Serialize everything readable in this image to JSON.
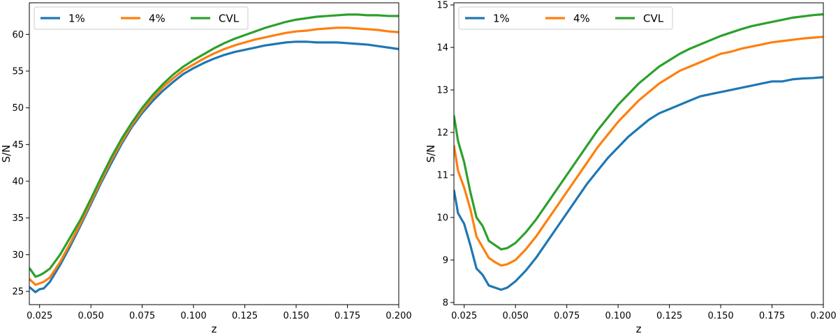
{
  "chart_data": [
    {
      "type": "line",
      "xlabel": "z",
      "ylabel": "S/N",
      "xlim": [
        0.02,
        0.2
      ],
      "ylim": [
        23.2,
        64.3
      ],
      "xticks": [
        "0.025",
        "0.050",
        "0.075",
        "0.100",
        "0.125",
        "0.150",
        "0.175",
        "0.200"
      ],
      "xtick_values": [
        0.025,
        0.05,
        0.075,
        0.1,
        0.125,
        0.15,
        0.175,
        0.2
      ],
      "yticks": [
        "25",
        "30",
        "35",
        "40",
        "45",
        "50",
        "55",
        "60"
      ],
      "ytick_values": [
        25,
        30,
        35,
        40,
        45,
        50,
        55,
        60
      ],
      "legend_position": "top-left",
      "series": [
        {
          "name": "1%",
          "color": "#1f77b4",
          "x": [
            0.02,
            0.023,
            0.025,
            0.027,
            0.03,
            0.035,
            0.04,
            0.045,
            0.05,
            0.055,
            0.06,
            0.065,
            0.07,
            0.075,
            0.08,
            0.085,
            0.09,
            0.095,
            0.1,
            0.105,
            0.11,
            0.115,
            0.12,
            0.125,
            0.13,
            0.135,
            0.14,
            0.145,
            0.15,
            0.155,
            0.16,
            0.165,
            0.17,
            0.175,
            0.18,
            0.185,
            0.19,
            0.195,
            0.2
          ],
          "y": [
            25.6,
            24.9,
            25.3,
            25.4,
            26.3,
            28.6,
            31.2,
            34.0,
            36.9,
            39.8,
            42.5,
            45.1,
            47.4,
            49.3,
            50.9,
            52.3,
            53.5,
            54.6,
            55.4,
            56.1,
            56.7,
            57.2,
            57.6,
            57.9,
            58.2,
            58.5,
            58.7,
            58.9,
            59.0,
            59.0,
            58.9,
            58.9,
            58.9,
            58.8,
            58.7,
            58.6,
            58.4,
            58.2,
            58.0
          ]
        },
        {
          "name": "4%",
          "color": "#ff7f0e",
          "x": [
            0.02,
            0.023,
            0.025,
            0.027,
            0.03,
            0.035,
            0.04,
            0.045,
            0.05,
            0.055,
            0.06,
            0.065,
            0.07,
            0.075,
            0.08,
            0.085,
            0.09,
            0.095,
            0.1,
            0.105,
            0.11,
            0.115,
            0.12,
            0.125,
            0.13,
            0.135,
            0.14,
            0.145,
            0.15,
            0.155,
            0.16,
            0.165,
            0.17,
            0.175,
            0.18,
            0.185,
            0.19,
            0.195,
            0.2
          ],
          "y": [
            26.7,
            25.9,
            26.1,
            26.3,
            26.9,
            29.0,
            31.6,
            34.3,
            37.2,
            40.1,
            42.9,
            45.4,
            47.7,
            49.6,
            51.3,
            52.8,
            54.0,
            55.1,
            55.9,
            56.7,
            57.4,
            58.0,
            58.5,
            58.9,
            59.3,
            59.6,
            59.9,
            60.2,
            60.4,
            60.5,
            60.7,
            60.8,
            60.9,
            60.9,
            60.8,
            60.7,
            60.6,
            60.4,
            60.3
          ]
        },
        {
          "name": "CVL",
          "color": "#2ca02c",
          "x": [
            0.02,
            0.023,
            0.025,
            0.027,
            0.03,
            0.035,
            0.04,
            0.045,
            0.05,
            0.055,
            0.06,
            0.065,
            0.07,
            0.075,
            0.08,
            0.085,
            0.09,
            0.095,
            0.1,
            0.105,
            0.11,
            0.115,
            0.12,
            0.125,
            0.13,
            0.135,
            0.14,
            0.145,
            0.15,
            0.155,
            0.16,
            0.165,
            0.17,
            0.175,
            0.18,
            0.185,
            0.19,
            0.195,
            0.2
          ],
          "y": [
            28.2,
            27.0,
            27.2,
            27.5,
            28.1,
            30.0,
            32.4,
            34.8,
            37.6,
            40.5,
            43.3,
            45.8,
            48.0,
            50.0,
            51.7,
            53.2,
            54.5,
            55.6,
            56.5,
            57.3,
            58.1,
            58.8,
            59.4,
            59.9,
            60.4,
            60.9,
            61.3,
            61.7,
            62.0,
            62.2,
            62.4,
            62.5,
            62.6,
            62.7,
            62.7,
            62.6,
            62.6,
            62.5,
            62.5
          ]
        }
      ]
    },
    {
      "type": "line",
      "xlabel": "z",
      "ylabel": "S/N",
      "xlim": [
        0.02,
        0.2
      ],
      "ylim": [
        7.95,
        15.05
      ],
      "xticks": [
        "0.025",
        "0.050",
        "0.075",
        "0.100",
        "0.125",
        "0.150",
        "0.175",
        "0.200"
      ],
      "xtick_values": [
        0.025,
        0.05,
        0.075,
        0.1,
        0.125,
        0.15,
        0.175,
        0.2
      ],
      "yticks": [
        "8",
        "9",
        "10",
        "11",
        "12",
        "13",
        "14",
        "15"
      ],
      "ytick_values": [
        8,
        9,
        10,
        11,
        12,
        13,
        14,
        15
      ],
      "legend_position": "top-left",
      "series": [
        {
          "name": "1%",
          "color": "#1f77b4",
          "x": [
            0.02,
            0.022,
            0.025,
            0.028,
            0.031,
            0.034,
            0.037,
            0.04,
            0.043,
            0.046,
            0.05,
            0.055,
            0.06,
            0.065,
            0.07,
            0.075,
            0.08,
            0.085,
            0.09,
            0.095,
            0.1,
            0.105,
            0.11,
            0.115,
            0.12,
            0.125,
            0.13,
            0.135,
            0.14,
            0.145,
            0.15,
            0.155,
            0.16,
            0.165,
            0.17,
            0.175,
            0.18,
            0.185,
            0.19,
            0.195,
            0.2
          ],
          "y": [
            10.65,
            10.1,
            9.85,
            9.35,
            8.8,
            8.65,
            8.4,
            8.35,
            8.3,
            8.35,
            8.5,
            8.75,
            9.05,
            9.4,
            9.75,
            10.1,
            10.45,
            10.8,
            11.1,
            11.4,
            11.65,
            11.9,
            12.1,
            12.3,
            12.45,
            12.55,
            12.65,
            12.75,
            12.85,
            12.9,
            12.95,
            13.0,
            13.05,
            13.1,
            13.15,
            13.2,
            13.2,
            13.25,
            13.27,
            13.28,
            13.3
          ]
        },
        {
          "name": "4%",
          "color": "#ff7f0e",
          "x": [
            0.02,
            0.022,
            0.025,
            0.028,
            0.031,
            0.034,
            0.037,
            0.04,
            0.043,
            0.046,
            0.05,
            0.055,
            0.06,
            0.065,
            0.07,
            0.075,
            0.08,
            0.085,
            0.09,
            0.095,
            0.1,
            0.105,
            0.11,
            0.115,
            0.12,
            0.125,
            0.13,
            0.135,
            0.14,
            0.145,
            0.15,
            0.155,
            0.16,
            0.165,
            0.17,
            0.175,
            0.18,
            0.185,
            0.19,
            0.195,
            0.2
          ],
          "y": [
            11.7,
            11.1,
            10.7,
            10.2,
            9.55,
            9.3,
            9.05,
            8.95,
            8.87,
            8.9,
            9.0,
            9.25,
            9.55,
            9.9,
            10.25,
            10.6,
            10.95,
            11.3,
            11.65,
            11.95,
            12.25,
            12.5,
            12.75,
            12.95,
            13.15,
            13.3,
            13.45,
            13.55,
            13.65,
            13.75,
            13.85,
            13.9,
            13.97,
            14.02,
            14.07,
            14.12,
            14.15,
            14.18,
            14.21,
            14.23,
            14.25
          ]
        },
        {
          "name": "CVL",
          "color": "#2ca02c",
          "x": [
            0.02,
            0.022,
            0.025,
            0.028,
            0.031,
            0.034,
            0.037,
            0.04,
            0.043,
            0.046,
            0.05,
            0.055,
            0.06,
            0.065,
            0.07,
            0.075,
            0.08,
            0.085,
            0.09,
            0.095,
            0.1,
            0.105,
            0.11,
            0.115,
            0.12,
            0.125,
            0.13,
            0.135,
            0.14,
            0.145,
            0.15,
            0.155,
            0.16,
            0.165,
            0.17,
            0.175,
            0.18,
            0.185,
            0.19,
            0.195,
            0.2
          ],
          "y": [
            12.4,
            11.8,
            11.3,
            10.6,
            10.0,
            9.8,
            9.45,
            9.35,
            9.25,
            9.28,
            9.4,
            9.65,
            9.95,
            10.3,
            10.65,
            11.0,
            11.35,
            11.7,
            12.05,
            12.35,
            12.65,
            12.9,
            13.15,
            13.35,
            13.55,
            13.7,
            13.85,
            13.97,
            14.07,
            14.17,
            14.27,
            14.35,
            14.43,
            14.5,
            14.55,
            14.6,
            14.65,
            14.7,
            14.73,
            14.76,
            14.78
          ]
        }
      ]
    }
  ]
}
